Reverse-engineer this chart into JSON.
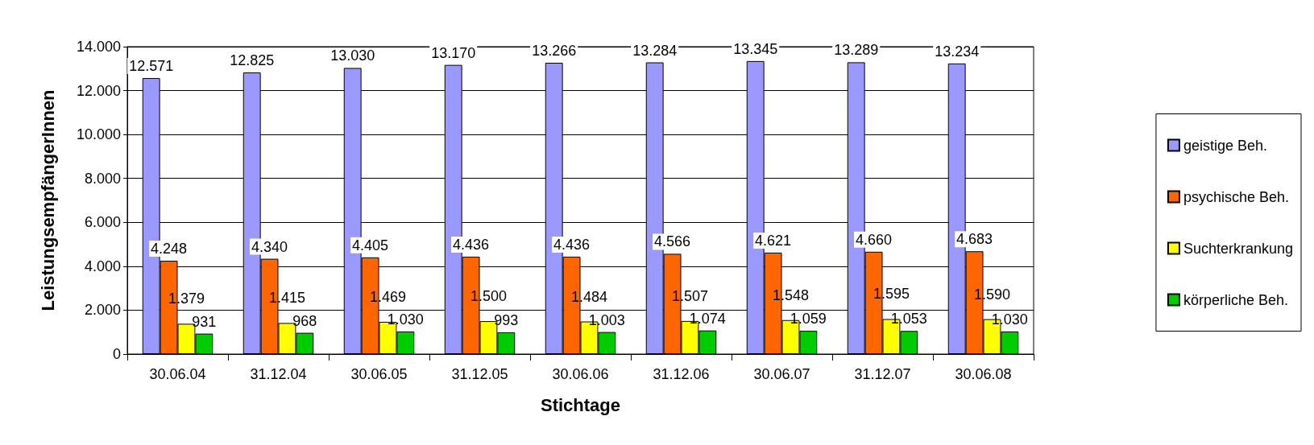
{
  "chart_data": {
    "type": "bar",
    "xlabel": "Stichtage",
    "ylabel": "LeistungsempfängerInnen",
    "categories": [
      "30.06.04",
      "31.12.04",
      "30.06.05",
      "31.12.05",
      "30.06.06",
      "31.12.06",
      "30.06.07",
      "31.12.07",
      "30.06.08"
    ],
    "series": [
      {
        "name": "geistige Beh.",
        "color": "#9999ff",
        "values": [
          12571,
          12825,
          13030,
          13170,
          13266,
          13284,
          13345,
          13289,
          13234
        ],
        "value_labels": [
          "12.571",
          "12.825",
          "13.030",
          "13.170",
          "13.266",
          "13.284",
          "13.345",
          "13.289",
          "13.234"
        ]
      },
      {
        "name": "psychische Beh.",
        "color": "#ff6600",
        "values": [
          4248,
          4340,
          4405,
          4436,
          4436,
          4566,
          4621,
          4660,
          4683
        ],
        "value_labels": [
          "4.248",
          "4.340",
          "4.405",
          "4.436",
          "4.436",
          "4.566",
          "4.621",
          "4.660",
          "4.683"
        ]
      },
      {
        "name": "Suchterkrankung",
        "color": "#ffff00",
        "values": [
          1379,
          1415,
          1469,
          1500,
          1484,
          1507,
          1548,
          1595,
          1590
        ],
        "value_labels": [
          "1.379",
          "1.415",
          "1.469",
          "1.500",
          "1.484",
          "1.507",
          "1.548",
          "1.595",
          "1.590"
        ]
      },
      {
        "name": "körperliche Beh.",
        "color": "#00cc00",
        "values": [
          931,
          968,
          1030,
          993,
          1003,
          1074,
          1059,
          1053,
          1030
        ],
        "value_labels": [
          "931",
          "968",
          "1.030",
          "993",
          "1.003",
          "1.074",
          "1.059",
          "1.053",
          "1.030"
        ]
      }
    ],
    "ylim": [
      0,
      14000
    ],
    "yticks": [
      {
        "value": 0,
        "label": "0"
      },
      {
        "value": 2000,
        "label": "2.000"
      },
      {
        "value": 4000,
        "label": "4.000"
      },
      {
        "value": 6000,
        "label": "6.000"
      },
      {
        "value": 8000,
        "label": "8.000"
      },
      {
        "value": 10000,
        "label": "10.000"
      },
      {
        "value": 12000,
        "label": "12.000"
      },
      {
        "value": 14000,
        "label": "14.000"
      }
    ],
    "grid": "y",
    "legend": "right"
  }
}
